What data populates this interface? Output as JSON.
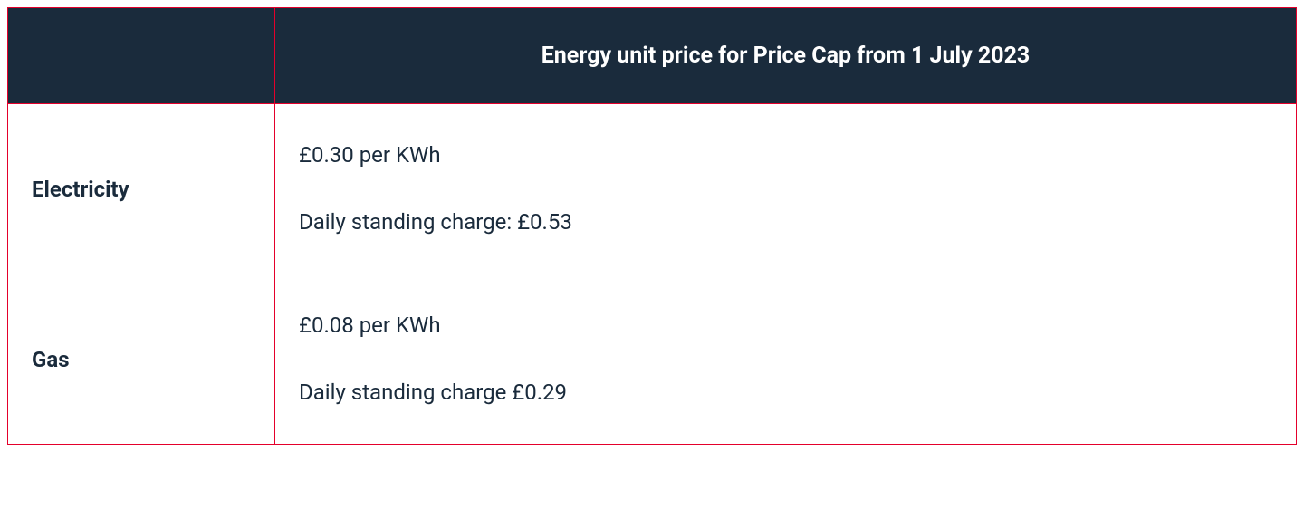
{
  "table": {
    "header": {
      "title": "Energy unit price for Price Cap from 1 July 2023"
    },
    "rows": [
      {
        "label": "Electricity",
        "unit_price": "£0.30 per KWh",
        "standing_charge": "Daily standing charge: £0.53"
      },
      {
        "label": "Gas",
        "unit_price": "£0.08 per KWh",
        "standing_charge": "Daily standing charge £0.29"
      }
    ]
  },
  "styling": {
    "border_color": "#e4002b",
    "header_bg": "#1a2b3c",
    "header_text_color": "#ffffff",
    "body_text_color": "#1a2b3c",
    "header_fontsize": 25,
    "body_fontsize": 24,
    "first_col_width": 295,
    "background_color": "#ffffff"
  }
}
